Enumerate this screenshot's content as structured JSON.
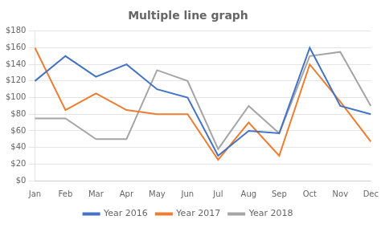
{
  "chart_data": {
    "type": "line",
    "title": "Multiple line graph",
    "categories": [
      "Jan",
      "Feb",
      "Mar",
      "Apr",
      "May",
      "Jun",
      "Jul",
      "Aug",
      "Sep",
      "Oct",
      "Nov",
      "Dec"
    ],
    "series": [
      {
        "name": "Year 2016",
        "color": "#4472C4",
        "values": [
          120,
          150,
          125,
          140,
          110,
          100,
          30,
          60,
          57,
          160,
          90,
          80
        ]
      },
      {
        "name": "Year 2017",
        "color": "#ED7D31",
        "values": [
          160,
          85,
          105,
          85,
          80,
          80,
          25,
          70,
          30,
          140,
          95,
          47
        ]
      },
      {
        "name": "Year 2018",
        "color": "#A5A5A5",
        "values": [
          75,
          75,
          50,
          50,
          133,
          120,
          38,
          90,
          57,
          150,
          155,
          90
        ]
      }
    ],
    "ylim": [
      0,
      180
    ],
    "yticks": [
      {
        "value": 0,
        "label": "$0"
      },
      {
        "value": 20,
        "label": "$20"
      },
      {
        "value": 40,
        "label": "$40"
      },
      {
        "value": 60,
        "label": "$60"
      },
      {
        "value": 80,
        "label": "$80"
      },
      {
        "value": 100,
        "label": "$100"
      },
      {
        "value": 120,
        "label": "$120"
      },
      {
        "value": 140,
        "label": "$140"
      },
      {
        "value": 160,
        "label": "$160"
      },
      {
        "value": 180,
        "label": "$180"
      }
    ],
    "grid": "y",
    "legend": "bottom"
  }
}
